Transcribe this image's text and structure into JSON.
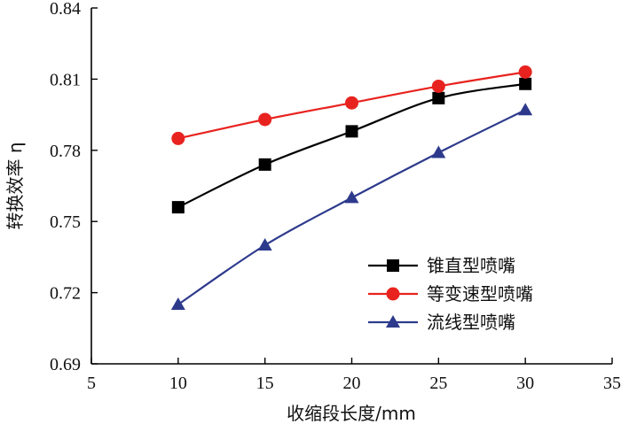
{
  "chart_data": {
    "type": "line",
    "xlabel": "收缩段长度/mm",
    "ylabel": "转换效率 η",
    "xlim": [
      5,
      35
    ],
    "ylim": [
      0.69,
      0.84
    ],
    "xticks": [
      5,
      10,
      15,
      20,
      25,
      30,
      35
    ],
    "yticks": [
      0.69,
      0.72,
      0.75,
      0.78,
      0.81,
      0.84
    ],
    "ytick_labels": [
      "0.69",
      "0.72",
      "0.75",
      "0.78",
      "0.81",
      "0.84"
    ],
    "grid": false,
    "legend_position": "bottom-right",
    "x": [
      10,
      15,
      20,
      25,
      30
    ],
    "series": [
      {
        "name": "锥直型喷嘴",
        "values": [
          0.756,
          0.774,
          0.788,
          0.802,
          0.808
        ],
        "color": "#000000",
        "marker": "square"
      },
      {
        "name": "等变速型喷嘴",
        "values": [
          0.785,
          0.793,
          0.8,
          0.807,
          0.813
        ],
        "color": "#e8231f",
        "marker": "circle"
      },
      {
        "name": "流线型喷嘴",
        "values": [
          0.715,
          0.74,
          0.76,
          0.779,
          0.797
        ],
        "color": "#2d3a8c",
        "marker": "triangle"
      }
    ]
  }
}
